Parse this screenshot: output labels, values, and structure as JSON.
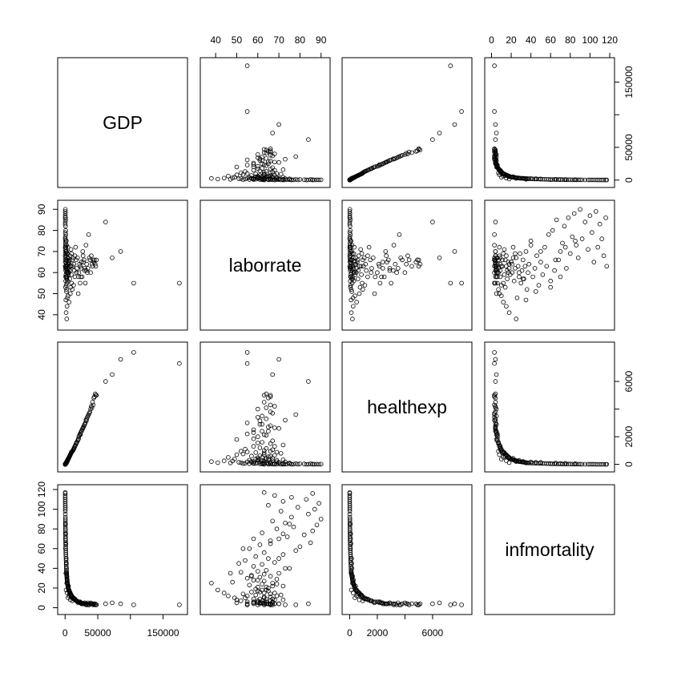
{
  "chart_data": {
    "type": "scatter",
    "title": "",
    "variables": [
      "GDP",
      "laborrate",
      "healthexp",
      "infmortality"
    ],
    "axes": {
      "GDP": {
        "range": [
          -4000,
          180000
        ],
        "ticks": [
          0,
          50000,
          150000
        ],
        "ticks_right": [
          0,
          50000,
          100000,
          150000
        ],
        "tick_labels": [
          "0",
          "50000",
          "150000"
        ]
      },
      "laborrate": {
        "range": [
          35,
          92
        ],
        "ticks": [
          40,
          50,
          60,
          70,
          80,
          90
        ],
        "tick_labels": [
          "40",
          "50",
          "60",
          "70",
          "80",
          "90"
        ]
      },
      "healthexp": {
        "range": [
          -200,
          8500
        ],
        "ticks": [
          0,
          2000,
          4000,
          6000
        ],
        "tick_labels": [
          "0",
          "2000",
          "4000",
          "6000"
        ],
        "ticks_bottom": [
          0,
          2000,
          6000
        ],
        "tick_labels_bottom": [
          "0",
          "2000",
          "6000"
        ]
      },
      "infmortality": {
        "range": [
          -2,
          120
        ],
        "ticks": [
          0,
          20,
          40,
          60,
          80,
          100,
          120
        ],
        "tick_labels": [
          "0",
          "20",
          "40",
          "60",
          "80",
          "100",
          "120"
        ]
      }
    },
    "grid": false,
    "legend": "none",
    "marker": "open-circle",
    "series": [
      {
        "columns": [
          "GDP",
          "laborrate",
          "healthexp",
          "infmortality"
        ],
        "values": [
          [
            175000,
            55,
            7300,
            3
          ],
          [
            105000,
            55,
            8100,
            3
          ],
          [
            85000,
            70,
            7600,
            4
          ],
          [
            72000,
            67,
            6500,
            5
          ],
          [
            62000,
            84,
            6000,
            4
          ],
          [
            48000,
            66,
            5000,
            3
          ],
          [
            46000,
            64,
            5100,
            4
          ],
          [
            45000,
            66,
            4900,
            3
          ],
          [
            44000,
            65,
            4800,
            4
          ],
          [
            42000,
            63,
            4500,
            4
          ],
          [
            40000,
            68,
            4200,
            4
          ],
          [
            39000,
            60,
            4000,
            5
          ],
          [
            38000,
            66,
            3800,
            4
          ],
          [
            36000,
            78,
            3600,
            3
          ],
          [
            35000,
            62,
            3500,
            5
          ],
          [
            34000,
            60,
            3400,
            3
          ],
          [
            33000,
            64,
            3300,
            4
          ],
          [
            32000,
            73,
            3200,
            3
          ],
          [
            31000,
            55,
            3000,
            4
          ],
          [
            30000,
            61,
            2900,
            5
          ],
          [
            29000,
            66,
            2800,
            4
          ],
          [
            28000,
            65,
            2700,
            4
          ],
          [
            27000,
            70,
            2600,
            4
          ],
          [
            26000,
            58,
            2500,
            4
          ],
          [
            25000,
            62,
            2400,
            5
          ],
          [
            24000,
            58,
            2300,
            5
          ],
          [
            23000,
            55,
            2200,
            6
          ],
          [
            22000,
            64,
            2100,
            6
          ],
          [
            21000,
            60,
            2000,
            6
          ],
          [
            20000,
            50,
            1800,
            5
          ],
          [
            19000,
            67,
            1700,
            6
          ],
          [
            18000,
            62,
            1600,
            7
          ],
          [
            17000,
            66,
            1500,
            7
          ],
          [
            16000,
            72,
            1400,
            8
          ],
          [
            15000,
            58,
            1300,
            9
          ],
          [
            14000,
            61,
            1200,
            9
          ],
          [
            13000,
            54,
            1100,
            10
          ],
          [
            12000,
            63,
            1000,
            10
          ],
          [
            11000,
            66,
            950,
            11
          ],
          [
            10000,
            55,
            900,
            12
          ],
          [
            9500,
            59,
            850,
            13
          ],
          [
            9000,
            71,
            800,
            13
          ],
          [
            8500,
            53,
            750,
            14
          ],
          [
            8000,
            63,
            700,
            15
          ],
          [
            7500,
            68,
            650,
            15
          ],
          [
            7000,
            57,
            600,
            16
          ],
          [
            6500,
            65,
            550,
            17
          ],
          [
            6000,
            62,
            500,
            18
          ],
          [
            5500,
            64,
            450,
            18
          ],
          [
            5000,
            59,
            400,
            19
          ],
          [
            4800,
            65,
            380,
            20
          ],
          [
            4500,
            60,
            350,
            21
          ],
          [
            4200,
            72,
            330,
            22
          ],
          [
            4000,
            56,
            300,
            23
          ],
          [
            3800,
            62,
            280,
            24
          ],
          [
            3600,
            67,
            260,
            25
          ],
          [
            3400,
            48,
            240,
            26
          ],
          [
            3200,
            63,
            220,
            27
          ],
          [
            3000,
            58,
            200,
            28
          ],
          [
            2900,
            69,
            190,
            29
          ],
          [
            2800,
            55,
            180,
            30
          ],
          [
            2700,
            61,
            170,
            31
          ],
          [
            2600,
            66,
            160,
            32
          ],
          [
            2500,
            57,
            150,
            33
          ],
          [
            2400,
            63,
            140,
            34
          ],
          [
            2300,
            70,
            130,
            35
          ],
          [
            2200,
            52,
            120,
            36
          ],
          [
            2100,
            60,
            110,
            37
          ],
          [
            2000,
            64,
            100,
            38
          ],
          [
            1900,
            75,
            95,
            40
          ],
          [
            1800,
            58,
            90,
            42
          ],
          [
            1700,
            62,
            85,
            44
          ],
          [
            1600,
            68,
            80,
            46
          ],
          [
            1500,
            54,
            75,
            48
          ],
          [
            1400,
            65,
            70,
            50
          ],
          [
            1300,
            59,
            65,
            52
          ],
          [
            1200,
            72,
            60,
            54
          ],
          [
            1100,
            63,
            55,
            56
          ],
          [
            1000,
            78,
            50,
            58
          ],
          [
            950,
            56,
            45,
            60
          ],
          [
            900,
            80,
            40,
            62
          ],
          [
            850,
            61,
            38,
            64
          ],
          [
            800,
            85,
            35,
            66
          ],
          [
            750,
            66,
            33,
            68
          ],
          [
            700,
            70,
            30,
            70
          ],
          [
            650,
            74,
            28,
            72
          ],
          [
            600,
            82,
            25,
            74
          ],
          [
            550,
            62,
            22,
            76
          ],
          [
            500,
            86,
            20,
            78
          ],
          [
            480,
            69,
            18,
            80
          ],
          [
            460,
            77,
            16,
            82
          ],
          [
            440,
            88,
            15,
            84
          ],
          [
            420,
            73,
            14,
            86
          ],
          [
            400,
            67,
            13,
            88
          ],
          [
            380,
            90,
            12,
            90
          ],
          [
            360,
            76,
            11,
            92
          ],
          [
            340,
            84,
            10,
            95
          ],
          [
            320,
            71,
            9,
            98
          ],
          [
            300,
            87,
            8,
            100
          ],
          [
            280,
            79,
            7,
            102
          ],
          [
            260,
            65,
            6,
            104
          ],
          [
            240,
            89,
            5,
            106
          ],
          [
            220,
            72,
            5,
            108
          ],
          [
            200,
            83,
            4,
            110
          ],
          [
            180,
            76,
            4,
            112
          ],
          [
            160,
            68,
            3,
            114
          ],
          [
            150,
            86,
            3,
            116
          ],
          [
            140,
            63,
            3,
            117
          ],
          [
            2500,
            38,
            200,
            25
          ],
          [
            1500,
            41,
            120,
            18
          ],
          [
            3000,
            44,
            250,
            15
          ],
          [
            6000,
            46,
            500,
            12
          ],
          [
            1200,
            47,
            100,
            35
          ],
          [
            4500,
            49,
            380,
            10
          ],
          [
            8000,
            50,
            700,
            8
          ],
          [
            2000,
            51,
            150,
            45
          ],
          [
            11000,
            52,
            950,
            7
          ],
          [
            700,
            53,
            55,
            60
          ],
          [
            25000,
            65,
            2400,
            4
          ],
          [
            30000,
            62,
            2900,
            5
          ],
          [
            15000,
            68,
            1300,
            8
          ],
          [
            800,
            58,
            60,
            70
          ],
          [
            1800,
            70,
            140,
            50
          ],
          [
            3300,
            60,
            280,
            28
          ],
          [
            5200,
            67,
            430,
            22
          ],
          [
            7200,
            61,
            620,
            16
          ],
          [
            9800,
            69,
            880,
            12
          ],
          [
            13500,
            64,
            1150,
            9
          ],
          [
            600,
            75,
            50,
            85
          ],
          [
            900,
            72,
            70,
            75
          ],
          [
            1100,
            66,
            90,
            65
          ],
          [
            2200,
            73,
            170,
            40
          ],
          [
            2700,
            57,
            210,
            32
          ],
          [
            3700,
            69,
            300,
            24
          ],
          [
            4300,
            64,
            360,
            21
          ],
          [
            5800,
            60,
            480,
            17
          ],
          [
            6800,
            66,
            580,
            14
          ],
          [
            9200,
            63,
            820,
            11
          ],
          [
            12500,
            67,
            1050,
            9
          ],
          [
            17500,
            60,
            1550,
            7
          ],
          [
            20500,
            58,
            1850,
            6
          ],
          [
            23500,
            63,
            2150,
            5
          ],
          [
            27500,
            68,
            2650,
            4
          ],
          [
            32500,
            61,
            3150,
            4
          ],
          [
            37000,
            67,
            3700,
            3
          ],
          [
            41000,
            64,
            4100,
            4
          ],
          [
            43000,
            66,
            4300,
            3
          ],
          [
            47000,
            63,
            5000,
            3
          ]
        ]
      }
    ]
  }
}
